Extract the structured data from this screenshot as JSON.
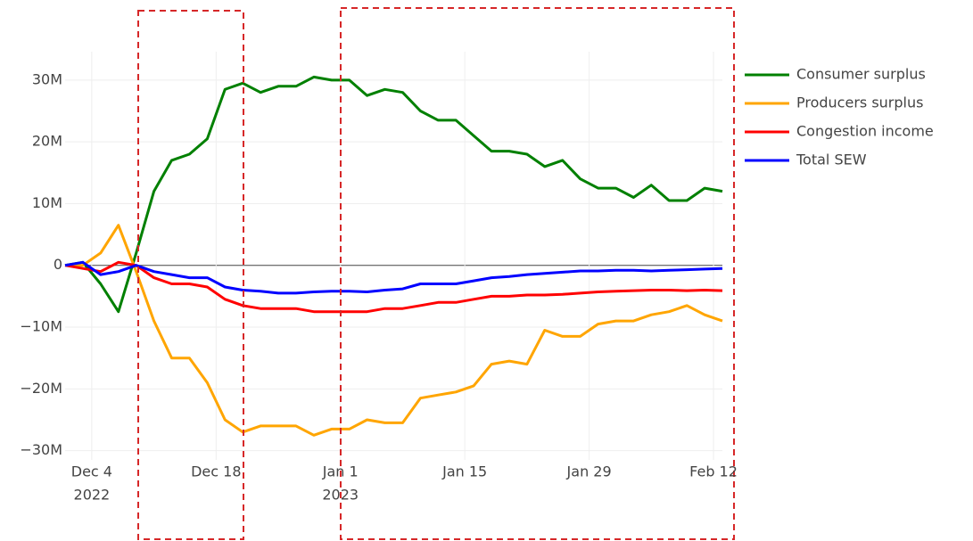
{
  "chart_data": {
    "type": "line",
    "x": [
      "2022-12-01",
      "2022-12-03",
      "2022-12-05",
      "2022-12-07",
      "2022-12-09",
      "2022-12-11",
      "2022-12-13",
      "2022-12-15",
      "2022-12-17",
      "2022-12-19",
      "2022-12-21",
      "2022-12-23",
      "2022-12-25",
      "2022-12-27",
      "2022-12-29",
      "2022-12-31",
      "2023-01-02",
      "2023-01-04",
      "2023-01-06",
      "2023-01-08",
      "2023-01-10",
      "2023-01-12",
      "2023-01-14",
      "2023-01-16",
      "2023-01-18",
      "2023-01-20",
      "2023-01-22",
      "2023-01-24",
      "2023-01-26",
      "2023-01-28",
      "2023-01-30",
      "2023-02-01",
      "2023-02-03",
      "2023-02-05",
      "2023-02-07",
      "2023-02-09",
      "2023-02-11",
      "2023-02-13"
    ],
    "series": [
      {
        "name": "Consumer surplus",
        "color": "#008000",
        "values": [
          0,
          500000.0,
          -3000000.0,
          -7500000.0,
          2000000.0,
          12000000.0,
          17000000.0,
          18000000.0,
          20500000.0,
          28500000.0,
          29500000.0,
          28000000.0,
          29000000.0,
          29000000.0,
          30500000.0,
          30000000.0,
          30000000.0,
          27500000.0,
          28500000.0,
          28000000.0,
          25000000.0,
          23500000.0,
          23500000.0,
          21000000.0,
          18500000.0,
          18500000.0,
          18000000.0,
          16000000.0,
          17000000.0,
          14000000.0,
          12500000.0,
          12500000.0,
          11000000.0,
          13000000.0,
          10500000.0,
          10500000.0,
          12500000.0,
          12000000.0
        ]
      },
      {
        "name": "Producers surplus",
        "color": "#ffa500",
        "values": [
          0,
          0,
          2000000.0,
          6500000.0,
          -1000000.0,
          -9000000.0,
          -15000000.0,
          -15000000.0,
          -19000000.0,
          -25000000.0,
          -27000000.0,
          -26000000.0,
          -26000000.0,
          -26000000.0,
          -27500000.0,
          -26500000.0,
          -26500000.0,
          -25000000.0,
          -25500000.0,
          -25500000.0,
          -21500000.0,
          -21000000.0,
          -20500000.0,
          -19500000.0,
          -16000000.0,
          -15500000.0,
          -16000000.0,
          -10500000.0,
          -11500000.0,
          -11500000.0,
          -9500000.0,
          -9000000.0,
          -9000000.0,
          -8000000.0,
          -7500000.0,
          -6500000.0,
          -8000000.0,
          -9000000.0
        ]
      },
      {
        "name": "Congestion income",
        "color": "#ff0000",
        "values": [
          0,
          -500000.0,
          -1000000.0,
          500000.0,
          0,
          -2000000.0,
          -3000000.0,
          -3000000.0,
          -3500000.0,
          -5500000.0,
          -6500000.0,
          -7000000.0,
          -7000000.0,
          -7000000.0,
          -7500000.0,
          -7500000.0,
          -7500000.0,
          -7500000.0,
          -7000000.0,
          -7000000.0,
          -6500000.0,
          -6000000.0,
          -6000000.0,
          -5500000.0,
          -5000000.0,
          -5000000.0,
          -4800000.0,
          -4800000.0,
          -4700000.0,
          -4500000.0,
          -4300000.0,
          -4200000.0,
          -4100000.0,
          -4000000.0,
          -4000000.0,
          -4100000.0,
          -4000000.0,
          -4100000.0
        ]
      },
      {
        "name": "Total SEW",
        "color": "#0000ff",
        "values": [
          0,
          500000.0,
          -1500000.0,
          -1000000.0,
          0,
          -1000000.0,
          -1500000.0,
          -2000000.0,
          -2000000.0,
          -3500000.0,
          -4000000.0,
          -4200000.0,
          -4500000.0,
          -4500000.0,
          -4300000.0,
          -4200000.0,
          -4200000.0,
          -4300000.0,
          -4000000.0,
          -3800000.0,
          -3000000.0,
          -3000000.0,
          -3000000.0,
          -2500000.0,
          -2000000.0,
          -1800000.0,
          -1500000.0,
          -1300000.0,
          -1100000.0,
          -900000.0,
          -900000.0,
          -800000.0,
          -800000.0,
          -900000.0,
          -800000.0,
          -700000.0,
          -600000.0,
          -500000.0
        ]
      }
    ],
    "xlim": [
      "2022-12-01",
      "2023-02-13"
    ],
    "xticks": [
      {
        "value": "2022-12-04",
        "label": "Dec 4",
        "year": "2022"
      },
      {
        "value": "2022-12-18",
        "label": "Dec 18"
      },
      {
        "value": "2023-01-01",
        "label": "Jan 1",
        "year": "2023"
      },
      {
        "value": "2023-01-15",
        "label": "Jan 15"
      },
      {
        "value": "2023-01-29",
        "label": "Jan 29"
      },
      {
        "value": "2023-02-12",
        "label": "Feb 12"
      }
    ],
    "ylim": [
      -31500000.0,
      34600000.0
    ],
    "yticks": [
      {
        "value": -30000000.0,
        "label": "−30M"
      },
      {
        "value": -20000000.0,
        "label": "−20M"
      },
      {
        "value": -10000000.0,
        "label": "−10M"
      },
      0,
      {
        "value": 10000000.0,
        "label": "10M"
      },
      {
        "value": 20000000.0,
        "label": "20M"
      },
      {
        "value": 30000000.0,
        "label": "30M"
      }
    ],
    "grid": true,
    "legend": "right"
  }
}
